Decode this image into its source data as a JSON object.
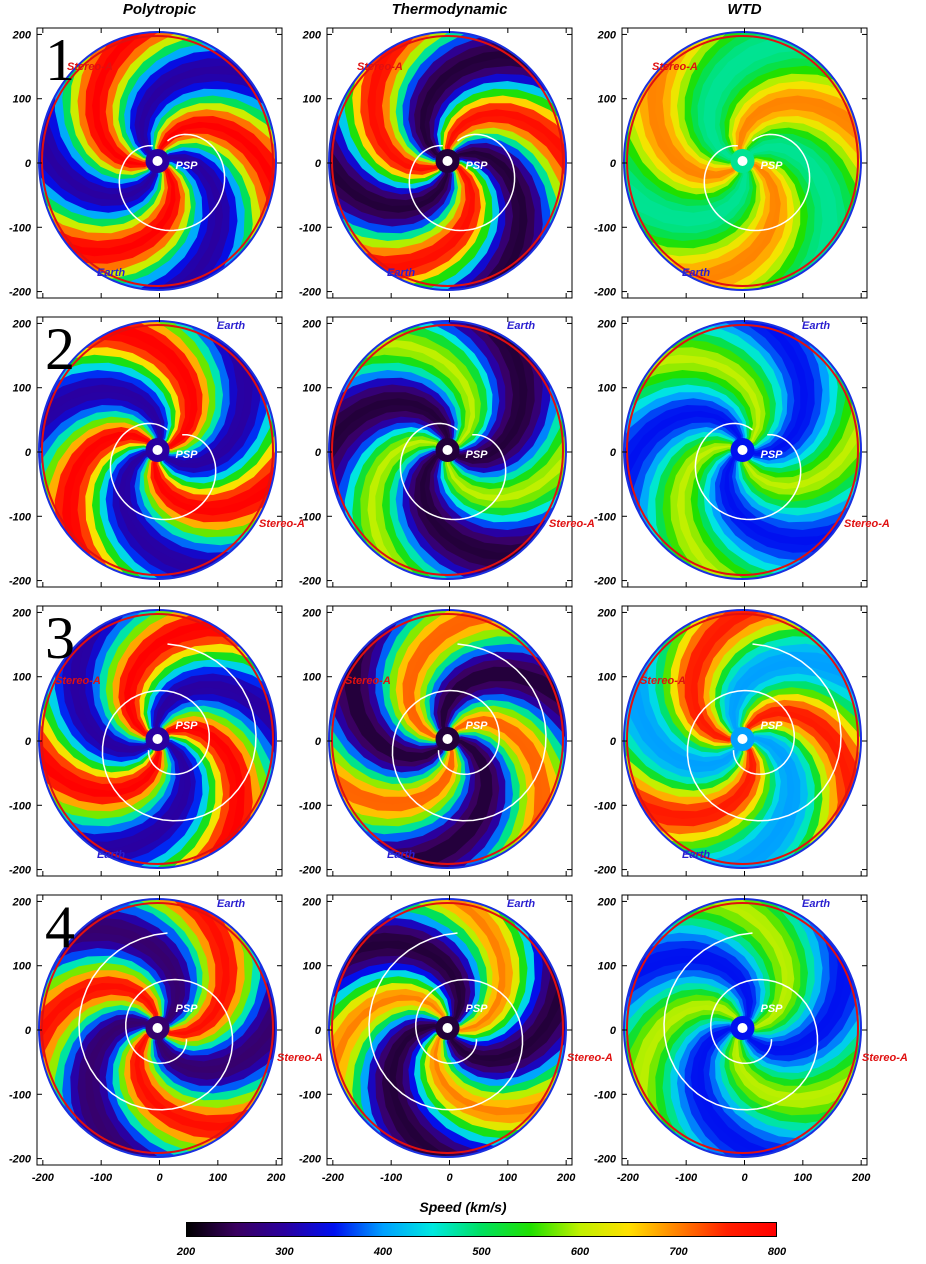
{
  "columns": [
    "Polytropic",
    "Thermodynamic",
    "WTD"
  ],
  "rows": [
    "1",
    "2",
    "3",
    "4"
  ],
  "colors": {
    "earth_label": "#2a1fd0",
    "stereo_label": "#e01010",
    "orbit_stereo": "#e01010",
    "orbit_earth": "#1a30e0",
    "psp_track": "#ffffff"
  },
  "labels": {
    "earth": "Earth",
    "stereo": "Stereo-A",
    "psp": "PSP"
  },
  "colorbar": {
    "label": "Speed (km/s)",
    "ticks": [
      "200",
      "300",
      "400",
      "500",
      "600",
      "700",
      "800"
    ],
    "colormap": [
      "#000000",
      "#3a0060",
      "#2a00a0",
      "#0010f0",
      "#00a0ff",
      "#00e8e0",
      "#00e060",
      "#20e000",
      "#c0f000",
      "#ffe000",
      "#ff8000",
      "#ff2000",
      "#ff0000"
    ]
  },
  "chart_data": {
    "type": "heatmap",
    "title": "",
    "xlabel": "",
    "ylabel": "",
    "colorbar_label": "Speed (km/s)",
    "colorbar_range": [
      200,
      800
    ],
    "xlim": [
      -210,
      210
    ],
    "ylim": [
      -210,
      210
    ],
    "x_ticks": [
      "-200",
      "-100",
      "0",
      "100",
      "200"
    ],
    "y_ticks": [
      "200",
      "100",
      "0",
      "-100",
      "-200"
    ],
    "grid": false,
    "panels": [
      {
        "row": 1,
        "model": "Polytropic",
        "speed_range": [
          300,
          800
        ],
        "bodies": [
          "Stereo-A",
          "Earth",
          "PSP"
        ]
      },
      {
        "row": 1,
        "model": "Thermodynamic",
        "speed_range": [
          230,
          780
        ],
        "bodies": [
          "Stereo-A",
          "Earth",
          "PSP"
        ]
      },
      {
        "row": 1,
        "model": "WTD",
        "speed_range": [
          480,
          700
        ],
        "bodies": [
          "Stereo-A",
          "Earth",
          "PSP"
        ]
      },
      {
        "row": 2,
        "model": "Polytropic",
        "speed_range": [
          300,
          800
        ],
        "bodies": [
          "Earth",
          "Stereo-A",
          "PSP"
        ]
      },
      {
        "row": 2,
        "model": "Thermodynamic",
        "speed_range": [
          230,
          600
        ],
        "bodies": [
          "Earth",
          "Stereo-A",
          "PSP"
        ]
      },
      {
        "row": 2,
        "model": "WTD",
        "speed_range": [
          350,
          600
        ],
        "bodies": [
          "Earth",
          "Stereo-A",
          "PSP"
        ]
      },
      {
        "row": 3,
        "model": "Polytropic",
        "speed_range": [
          300,
          800
        ],
        "bodies": [
          "Stereo-A",
          "Earth",
          "PSP"
        ]
      },
      {
        "row": 3,
        "model": "Thermodynamic",
        "speed_range": [
          230,
          720
        ],
        "bodies": [
          "Stereo-A",
          "Earth",
          "PSP"
        ]
      },
      {
        "row": 3,
        "model": "WTD",
        "speed_range": [
          400,
          760
        ],
        "bodies": [
          "Stereo-A",
          "Earth",
          "PSP"
        ]
      },
      {
        "row": 4,
        "model": "Polytropic",
        "speed_range": [
          260,
          780
        ],
        "bodies": [
          "Earth",
          "Stereo-A",
          "PSP"
        ]
      },
      {
        "row": 4,
        "model": "Thermodynamic",
        "speed_range": [
          230,
          700
        ],
        "bodies": [
          "Earth",
          "Stereo-A",
          "PSP"
        ]
      },
      {
        "row": 4,
        "model": "WTD",
        "speed_range": [
          350,
          600
        ],
        "bodies": [
          "Earth",
          "Stereo-A",
          "PSP"
        ]
      }
    ]
  }
}
